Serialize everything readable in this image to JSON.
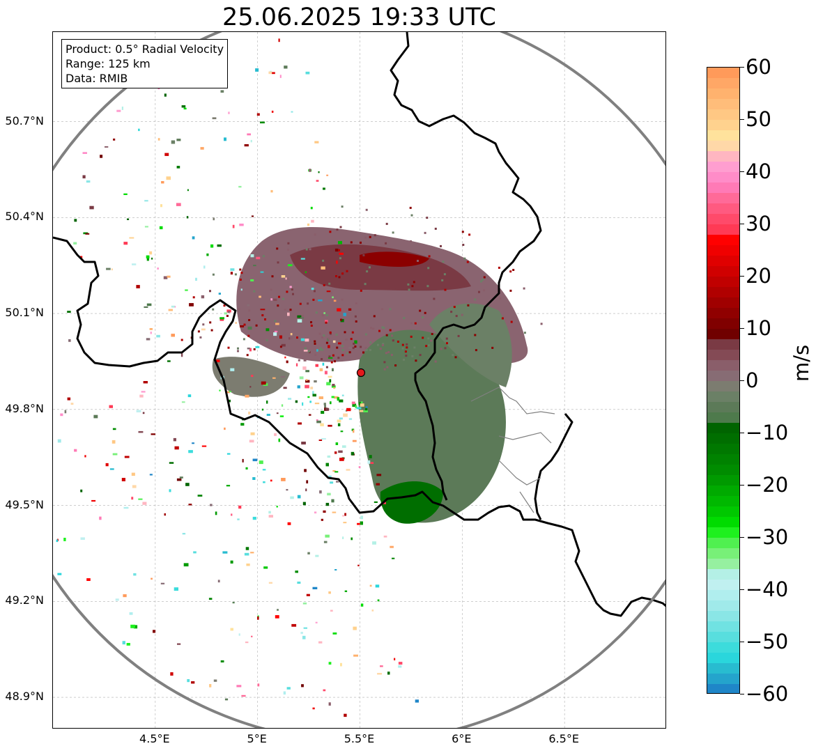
{
  "title": "25.06.2025 19:33 UTC",
  "info_box": {
    "product": "Product: 0.5° Radial Velocity",
    "range": "Range: 125 km",
    "data": "Data: RMIB"
  },
  "map": {
    "lon_range": [
      4.0,
      7.0
    ],
    "lat_range": [
      48.8,
      50.98
    ],
    "lon_ticks": [
      {
        "value": 4.5,
        "label": "4.5°E"
      },
      {
        "value": 5.0,
        "label": "5°E"
      },
      {
        "value": 5.5,
        "label": "5.5°E"
      },
      {
        "value": 6.0,
        "label": "6°E"
      },
      {
        "value": 6.5,
        "label": "6.5°E"
      }
    ],
    "lat_ticks": [
      {
        "value": 50.7,
        "label": "50.7°N"
      },
      {
        "value": 50.4,
        "label": "50.4°N"
      },
      {
        "value": 50.1,
        "label": "50.1°N"
      },
      {
        "value": 49.8,
        "label": "49.8°N"
      },
      {
        "value": 49.5,
        "label": "49.5°N"
      },
      {
        "value": 49.2,
        "label": "49.2°N"
      },
      {
        "value": 48.9,
        "label": "48.9°N"
      }
    ],
    "radar_site": {
      "lon": 5.505,
      "lat": 49.915,
      "color": "#e31a1c"
    },
    "range_circle_color": "#808080",
    "border_color": "#000000",
    "grid": true
  },
  "colorbar": {
    "unit": "m/s",
    "min": -60,
    "max": 60,
    "ticks": [
      {
        "value": 60,
        "label": "60"
      },
      {
        "value": 50,
        "label": "50"
      },
      {
        "value": 40,
        "label": "40"
      },
      {
        "value": 30,
        "label": "30"
      },
      {
        "value": 20,
        "label": "20"
      },
      {
        "value": 10,
        "label": "10"
      },
      {
        "value": 0,
        "label": "0"
      },
      {
        "value": -10,
        "label": "−10"
      },
      {
        "value": -20,
        "label": "−20"
      },
      {
        "value": -30,
        "label": "−30"
      },
      {
        "value": -40,
        "label": "−40"
      },
      {
        "value": -50,
        "label": "−50"
      },
      {
        "value": -60,
        "label": "−60"
      }
    ],
    "segments": [
      {
        "from": 58,
        "to": 60,
        "color": "#ff9a5a"
      },
      {
        "from": 56,
        "to": 58,
        "color": "#ffa766"
      },
      {
        "from": 54,
        "to": 56,
        "color": "#ffb26e"
      },
      {
        "from": 52,
        "to": 54,
        "color": "#ffbd7a"
      },
      {
        "from": 50,
        "to": 52,
        "color": "#ffc884"
      },
      {
        "from": 48,
        "to": 50,
        "color": "#ffd28e"
      },
      {
        "from": 46,
        "to": 48,
        "color": "#ffe29c"
      },
      {
        "from": 44,
        "to": 46,
        "color": "#ffd8a8"
      },
      {
        "from": 42,
        "to": 44,
        "color": "#ffb6c1"
      },
      {
        "from": 40,
        "to": 42,
        "color": "#ff9ed0"
      },
      {
        "from": 38,
        "to": 40,
        "color": "#ff8cc8"
      },
      {
        "from": 36,
        "to": 38,
        "color": "#ff7ab6"
      },
      {
        "from": 34,
        "to": 36,
        "color": "#ff6a98"
      },
      {
        "from": 32,
        "to": 34,
        "color": "#ff5a80"
      },
      {
        "from": 30,
        "to": 32,
        "color": "#ff4a6a"
      },
      {
        "from": 28,
        "to": 30,
        "color": "#ff3a55"
      },
      {
        "from": 26,
        "to": 28,
        "color": "#ff0000"
      },
      {
        "from": 24,
        "to": 26,
        "color": "#f00000"
      },
      {
        "from": 22,
        "to": 24,
        "color": "#e00000"
      },
      {
        "from": 20,
        "to": 22,
        "color": "#d00000"
      },
      {
        "from": 18,
        "to": 20,
        "color": "#c00000"
      },
      {
        "from": 16,
        "to": 18,
        "color": "#b00000"
      },
      {
        "from": 14,
        "to": 16,
        "color": "#a00000"
      },
      {
        "from": 12,
        "to": 14,
        "color": "#900000"
      },
      {
        "from": 10,
        "to": 12,
        "color": "#800000"
      },
      {
        "from": 8,
        "to": 10,
        "color": "#700000"
      },
      {
        "from": 6,
        "to": 8,
        "color": "#7a3a44"
      },
      {
        "from": 4,
        "to": 6,
        "color": "#844a55"
      },
      {
        "from": 2,
        "to": 4,
        "color": "#8a5e6a"
      },
      {
        "from": 0,
        "to": 2,
        "color": "#876c74"
      },
      {
        "from": -2,
        "to": 0,
        "color": "#7c7c70"
      },
      {
        "from": -4,
        "to": -2,
        "color": "#6b8066"
      },
      {
        "from": -6,
        "to": -4,
        "color": "#5c7a58"
      },
      {
        "from": -8,
        "to": -6,
        "color": "#4e7a4c"
      },
      {
        "from": -10,
        "to": -8,
        "color": "#006400"
      },
      {
        "from": -12,
        "to": -10,
        "color": "#006e00"
      },
      {
        "from": -14,
        "to": -12,
        "color": "#007800"
      },
      {
        "from": -16,
        "to": -14,
        "color": "#008200"
      },
      {
        "from": -18,
        "to": -16,
        "color": "#008c00"
      },
      {
        "from": -20,
        "to": -18,
        "color": "#009a00"
      },
      {
        "from": -22,
        "to": -20,
        "color": "#00aa00"
      },
      {
        "from": -24,
        "to": -22,
        "color": "#00b800"
      },
      {
        "from": -26,
        "to": -24,
        "color": "#00c800"
      },
      {
        "from": -28,
        "to": -26,
        "color": "#00dc00"
      },
      {
        "from": -30,
        "to": -28,
        "color": "#1ef01e"
      },
      {
        "from": -32,
        "to": -30,
        "color": "#50f050"
      },
      {
        "from": -34,
        "to": -32,
        "color": "#78f078"
      },
      {
        "from": -36,
        "to": -34,
        "color": "#96f0a0"
      },
      {
        "from": -38,
        "to": -36,
        "color": "#b4f0e6"
      },
      {
        "from": -40,
        "to": -38,
        "color": "#c0f0f0"
      },
      {
        "from": -42,
        "to": -40,
        "color": "#b0eeee"
      },
      {
        "from": -44,
        "to": -42,
        "color": "#a0eaea"
      },
      {
        "from": -46,
        "to": -44,
        "color": "#8ae6e6"
      },
      {
        "from": -48,
        "to": -46,
        "color": "#70e2e2"
      },
      {
        "from": -50,
        "to": -48,
        "color": "#58dede"
      },
      {
        "from": -52,
        "to": -50,
        "color": "#3cdcdc"
      },
      {
        "from": -54,
        "to": -52,
        "color": "#2ad6dc"
      },
      {
        "from": -56,
        "to": -54,
        "color": "#28bcd0"
      },
      {
        "from": -58,
        "to": -56,
        "color": "#24a4cc"
      },
      {
        "from": -60,
        "to": -58,
        "color": "#1f86c8"
      }
    ]
  }
}
